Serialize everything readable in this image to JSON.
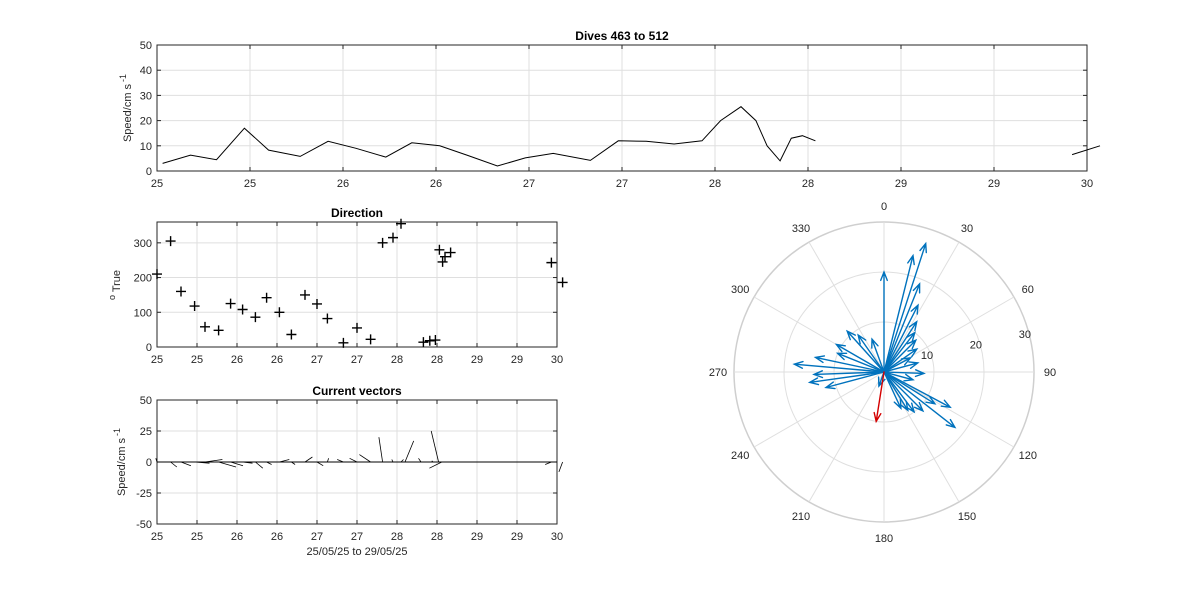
{
  "chart_data": [
    {
      "type": "line",
      "title": "Dives 463 to 512",
      "xlabel": "",
      "ylabel": "Speed/cm s",
      "ylabel_superscript": "-1",
      "xlim": [
        25,
        30
      ],
      "ylim": [
        0,
        50
      ],
      "xtick_labels": [
        "25",
        "25",
        "26",
        "26",
        "27",
        "27",
        "28",
        "28",
        "29",
        "29",
        "30"
      ],
      "yticks": [
        0,
        10,
        20,
        30,
        40,
        50
      ],
      "grid": true,
      "segments": [
        [
          [
            25.03,
            3
          ],
          [
            25.18,
            6.3
          ],
          [
            25.32,
            4.5
          ],
          [
            25.47,
            17
          ],
          [
            25.6,
            8.3
          ],
          [
            25.77,
            5.8
          ],
          [
            25.92,
            11.8
          ],
          [
            26.07,
            9
          ],
          [
            26.23,
            5.5
          ],
          [
            26.37,
            11.2
          ],
          [
            26.52,
            10
          ],
          [
            26.67,
            6.2
          ],
          [
            26.83,
            2
          ],
          [
            26.98,
            5.2
          ],
          [
            27.13,
            7
          ],
          [
            27.33,
            4.2
          ],
          [
            27.48,
            12
          ],
          [
            27.63,
            11.8
          ],
          [
            27.78,
            10.7
          ],
          [
            27.93,
            12
          ],
          [
            28.03,
            20
          ],
          [
            28.14,
            25.5
          ],
          [
            28.22,
            20
          ],
          [
            28.28,
            10
          ],
          [
            28.35,
            4
          ],
          [
            28.41,
            13
          ],
          [
            28.47,
            14
          ],
          [
            28.54,
            12
          ]
        ],
        [
          [
            29.92,
            6.5
          ],
          [
            30.07,
            10
          ]
        ]
      ]
    },
    {
      "type": "scatter",
      "title": "Direction",
      "xlabel": "",
      "ylabel": "True",
      "ylabel_prefix": "o",
      "xlim": [
        25,
        30
      ],
      "ylim": [
        0,
        360
      ],
      "xticks": [
        25,
        25.5,
        26,
        26.5,
        27,
        27.5,
        28,
        28.5,
        29,
        29.5,
        30
      ],
      "xtick_labels": [
        "25",
        "25",
        "26",
        "26",
        "27",
        "27",
        "28",
        "28",
        "29",
        "29",
        "30"
      ],
      "yticks": [
        0,
        100,
        200,
        300
      ],
      "grid": true,
      "marker": "+",
      "points": [
        [
          25,
          210
        ],
        [
          25.17,
          305
        ],
        [
          25.3,
          160
        ],
        [
          25.47,
          118
        ],
        [
          25.6,
          58
        ],
        [
          25.77,
          48
        ],
        [
          25.92,
          125
        ],
        [
          26.07,
          108
        ],
        [
          26.23,
          86
        ],
        [
          26.37,
          142
        ],
        [
          26.53,
          100
        ],
        [
          26.68,
          36
        ],
        [
          26.85,
          150
        ],
        [
          27,
          124
        ],
        [
          27.13,
          82
        ],
        [
          27.33,
          12
        ],
        [
          27.5,
          55
        ],
        [
          27.67,
          22
        ],
        [
          27.82,
          300
        ],
        [
          27.95,
          315
        ],
        [
          28.05,
          355
        ],
        [
          28.33,
          14
        ],
        [
          28.41,
          18
        ],
        [
          28.48,
          20
        ],
        [
          28.53,
          280
        ],
        [
          28.57,
          245
        ],
        [
          28.6,
          260
        ],
        [
          28.67,
          272
        ],
        [
          29.93,
          243
        ],
        [
          30.07,
          186
        ]
      ]
    },
    {
      "type": "quiver",
      "title": "Current vectors",
      "xlabel": "25/05/25 to 29/05/25",
      "ylabel": "Speed/cm s",
      "ylabel_superscript": "-1",
      "xlim": [
        25,
        30
      ],
      "ylim": [
        -50,
        50
      ],
      "xticks": [
        25,
        25.5,
        26,
        26.5,
        27,
        27.5,
        28,
        28.5,
        29,
        29.5,
        30
      ],
      "xtick_labels": [
        "25",
        "25",
        "26",
        "26",
        "27",
        "27",
        "28",
        "28",
        "29",
        "29",
        "30"
      ],
      "yticks": [
        -50,
        -25,
        0,
        25,
        50
      ],
      "grid": true,
      "vectors": [
        [
          25,
          -1,
          3
        ],
        [
          25.17,
          5,
          -4
        ],
        [
          25.3,
          8,
          -3
        ],
        [
          25.47,
          12,
          -1
        ],
        [
          25.6,
          14,
          2
        ],
        [
          25.77,
          14,
          -4
        ],
        [
          25.92,
          10,
          -3
        ],
        [
          26.07,
          8,
          -1
        ],
        [
          26.23,
          6,
          -5
        ],
        [
          26.37,
          4,
          -2
        ],
        [
          26.53,
          8,
          2
        ],
        [
          26.68,
          3,
          -2
        ],
        [
          26.85,
          6,
          4
        ],
        [
          27,
          5,
          -3
        ],
        [
          27.13,
          1,
          3
        ],
        [
          27.33,
          -5,
          2
        ],
        [
          27.5,
          -6,
          3
        ],
        [
          27.67,
          -9,
          6
        ],
        [
          27.82,
          -3,
          20
        ],
        [
          27.95,
          -1,
          2
        ],
        [
          28.05,
          2,
          2
        ],
        [
          28.1,
          7,
          17
        ],
        [
          28.3,
          -2,
          3
        ],
        [
          28.45,
          -1,
          1
        ],
        [
          28.52,
          -6,
          25
        ],
        [
          28.56,
          -10,
          -5
        ],
        [
          29.93,
          -5,
          -2
        ],
        [
          30.07,
          -3,
          -8
        ]
      ]
    },
    {
      "type": "polar_compass",
      "theta_direction": "clockwise",
      "theta_zero": "top",
      "angle_labels": [
        "0",
        "30",
        "60",
        "90",
        "120",
        "150",
        "180",
        "210",
        "240",
        "270",
        "300",
        "330"
      ],
      "radial_labels": [
        "10",
        "20",
        "30"
      ],
      "rmax": 30,
      "series": [
        {
          "color": "#0072bd",
          "vectors": [
            [
              0,
              20
            ],
            [
              14,
              24
            ],
            [
              18,
              27
            ],
            [
              22,
              19
            ],
            [
              27,
              15
            ],
            [
              33,
              12
            ],
            [
              38,
              10
            ],
            [
              45,
              9
            ],
            [
              55,
              8
            ],
            [
              62,
              6
            ],
            [
              75,
              7
            ],
            [
              92,
              8
            ],
            [
              105,
              6
            ],
            [
              118,
              15
            ],
            [
              122,
              12
            ],
            [
              128,
              18
            ],
            [
              135,
              11
            ],
            [
              143,
              10
            ],
            [
              148,
              9
            ],
            [
              155,
              8
            ],
            [
              200,
              3
            ],
            [
              255,
              12
            ],
            [
              262,
              15
            ],
            [
              268,
              14
            ],
            [
              275,
              18
            ],
            [
              282,
              14
            ],
            [
              292,
              10
            ],
            [
              300,
              11
            ],
            [
              318,
              11
            ],
            [
              325,
              9
            ],
            [
              340,
              7
            ]
          ]
        },
        {
          "color": "#d40000",
          "vectors": [
            [
              189,
              10
            ]
          ]
        }
      ]
    }
  ]
}
